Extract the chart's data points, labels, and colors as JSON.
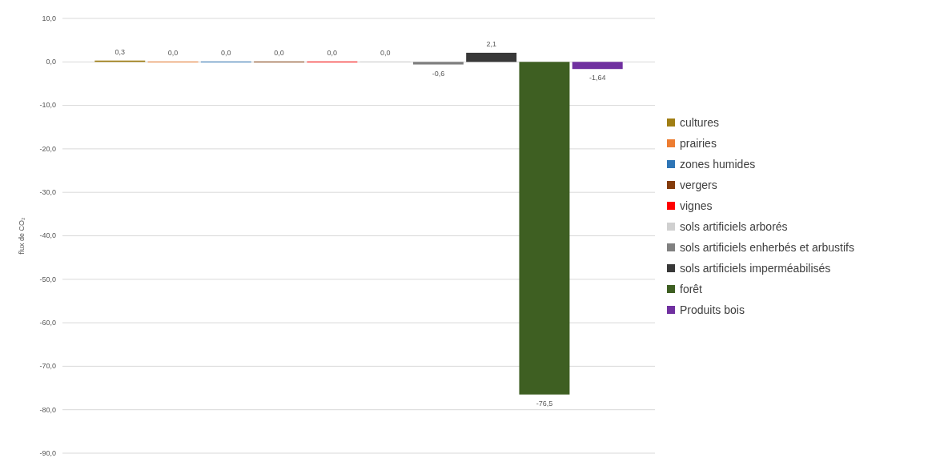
{
  "chart_data": {
    "type": "bar",
    "ylabel": "flux de CO₂",
    "categories": [
      null
    ],
    "series": [
      {
        "name": "cultures",
        "color": "#a07e14",
        "values": [
          0.3
        ],
        "value_labels": [
          "0,3"
        ]
      },
      {
        "name": "prairies",
        "color": "#ed7d31",
        "values": [
          0
        ],
        "value_labels": [
          "0,0"
        ]
      },
      {
        "name": "zones humides",
        "color": "#2e75b6",
        "values": [
          0
        ],
        "value_labels": [
          "0,0"
        ]
      },
      {
        "name": "vergers",
        "color": "#843c0c",
        "values": [
          0
        ],
        "value_labels": [
          "0,0"
        ]
      },
      {
        "name": "vignes",
        "color": "#ff0000",
        "values": [
          0
        ],
        "value_labels": [
          "0,0"
        ]
      },
      {
        "name": "sols artificiels arborés",
        "color": "#d0d0d0",
        "values": [
          0
        ],
        "value_labels": [
          "0,0"
        ]
      },
      {
        "name": "sols artificiels enherbés et arbustifs",
        "color": "#808080",
        "values": [
          -0.6
        ],
        "value_labels": [
          "-0,6"
        ]
      },
      {
        "name": "sols artificiels imperméabilisés",
        "color": "#383838",
        "values": [
          2.1
        ],
        "value_labels": [
          "2,1"
        ]
      },
      {
        "name": "forêt",
        "color": "#3e5f22",
        "values": [
          -76.5
        ],
        "value_labels": [
          "-76,5"
        ]
      },
      {
        "name": "Produits bois",
        "color": "#7030a0",
        "values": [
          -1.64
        ],
        "value_labels": [
          "-1,64"
        ]
      }
    ],
    "ylim": [
      -90,
      10
    ],
    "yticks": [
      {
        "value": 10,
        "label": "10,0"
      },
      {
        "value": 0,
        "label": "0,0"
      },
      {
        "value": -10,
        "label": "-10,0"
      },
      {
        "value": -20,
        "label": "-20,0"
      },
      {
        "value": -30,
        "label": "-30,0"
      },
      {
        "value": -40,
        "label": "-40,0"
      },
      {
        "value": -50,
        "label": "-50,0"
      },
      {
        "value": -60,
        "label": "-60,0"
      },
      {
        "value": -70,
        "label": "-70,0"
      },
      {
        "value": -80,
        "label": "-80,0"
      },
      {
        "value": -90,
        "label": "-90,0"
      }
    ],
    "grid": "y",
    "legend": "right",
    "tick_labels": "y"
  }
}
